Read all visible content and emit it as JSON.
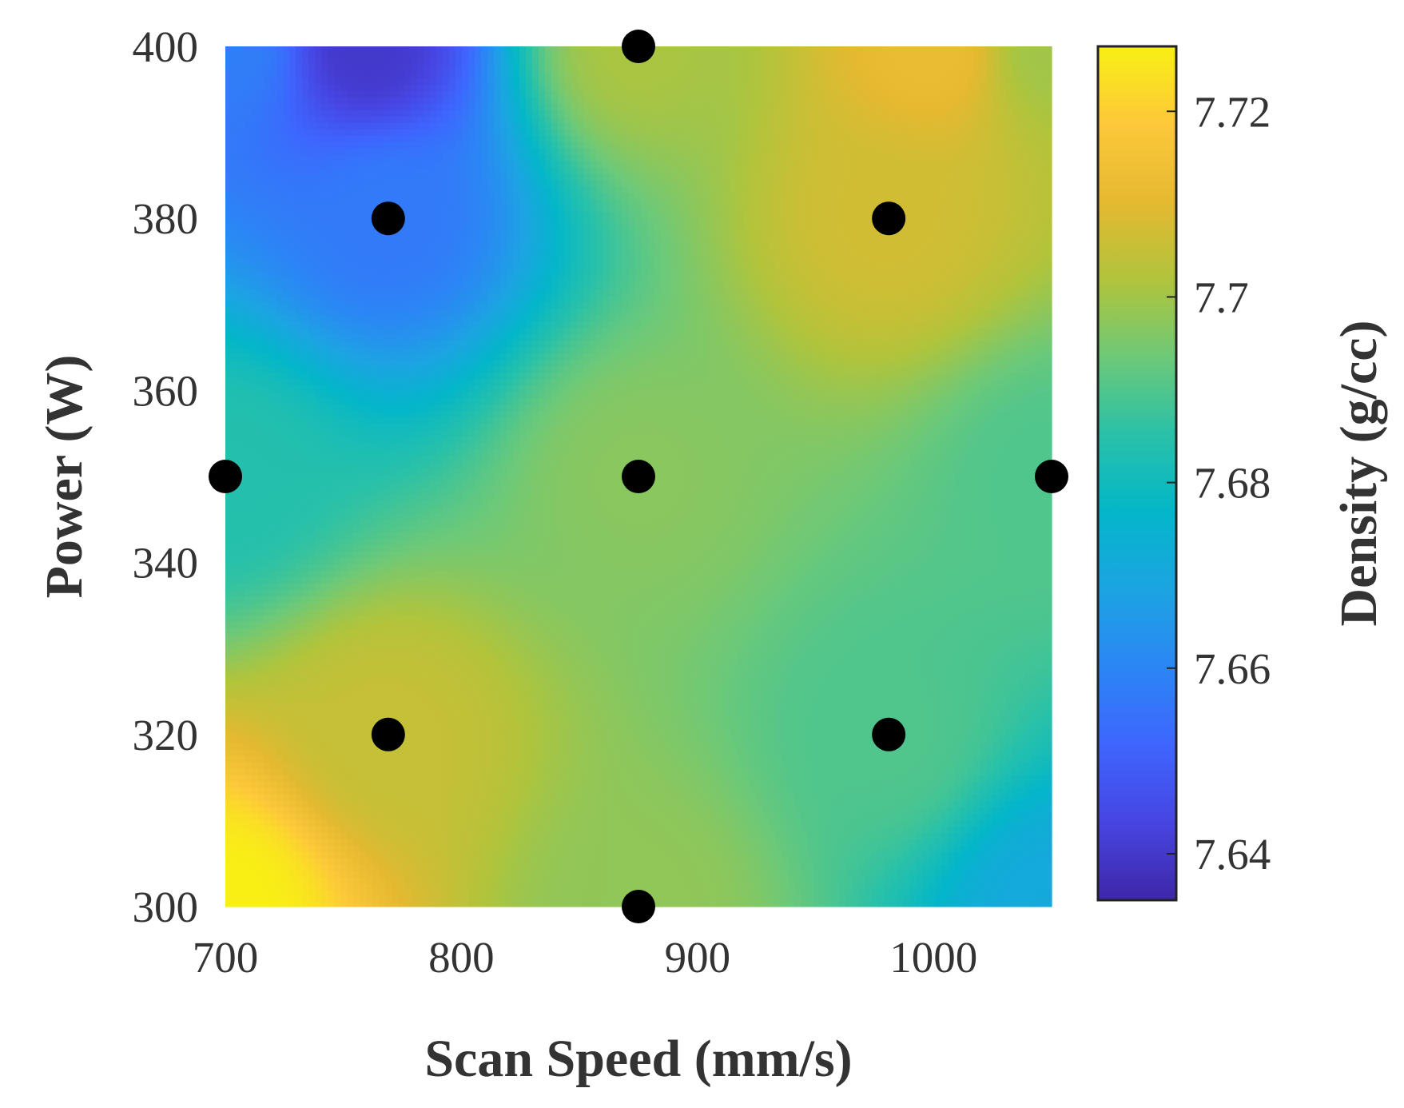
{
  "chart_data": {
    "type": "heatmap",
    "title": "",
    "xlabel": "Scan Speed (mm/s)",
    "ylabel": "Power (W)",
    "xlim": [
      700,
      1050
    ],
    "ylim": [
      300,
      400
    ],
    "xticks": [
      "700",
      "800",
      "900",
      "1000"
    ],
    "yticks": [
      "300",
      "320",
      "340",
      "360",
      "380",
      "400"
    ],
    "colorbar": {
      "label": "Density (g/cc)",
      "range": [
        7.635,
        7.727
      ],
      "ticks": [
        "7.64",
        "7.66",
        "7.68",
        "7.7",
        "7.72"
      ],
      "colormap": [
        "#3e26a8",
        "#4745e2",
        "#3e65fe",
        "#2b86f5",
        "#1ca4e2",
        "#03b6c9",
        "#29c1a8",
        "#6dc978",
        "#b1c43b",
        "#e5b930",
        "#fdc83a",
        "#f8f014"
      ]
    },
    "grid": false,
    "points": [
      {
        "x": 700,
        "y": 350,
        "density": 7.684
      },
      {
        "x": 769,
        "y": 380,
        "density": 7.657
      },
      {
        "x": 769,
        "y": 320,
        "density": 7.705
      },
      {
        "x": 875,
        "y": 400,
        "density": 7.701
      },
      {
        "x": 875,
        "y": 350,
        "density": 7.697
      },
      {
        "x": 875,
        "y": 300,
        "density": 7.698
      },
      {
        "x": 981,
        "y": 380,
        "density": 7.707
      },
      {
        "x": 981,
        "y": 320,
        "density": 7.69
      },
      {
        "x": 1050,
        "y": 350,
        "density": 7.69
      }
    ],
    "corners": [
      {
        "x": 700,
        "y": 400,
        "density": 7.658
      },
      {
        "x": 760,
        "y": 400,
        "density": 7.64
      },
      {
        "x": 1000,
        "y": 400,
        "density": 7.712
      },
      {
        "x": 1050,
        "y": 400,
        "density": 7.7
      },
      {
        "x": 700,
        "y": 300,
        "density": 7.727
      },
      {
        "x": 1050,
        "y": 300,
        "density": 7.671
      }
    ]
  }
}
